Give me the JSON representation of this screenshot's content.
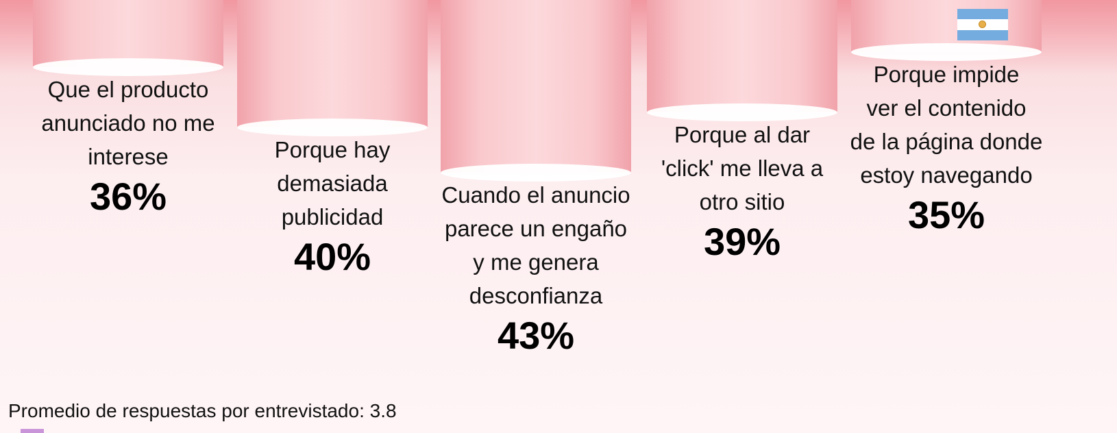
{
  "chart_data": {
    "type": "bar",
    "categories": [
      [
        "Que el producto",
        "anunciado no me",
        "interese"
      ],
      [
        "Porque hay",
        "demasiada",
        "publicidad"
      ],
      [
        "Cuando el anuncio",
        "parece un engaño",
        "y me genera",
        "desconfianza"
      ],
      [
        "Porque al dar",
        "'click' me lleva a",
        "otro sitio"
      ],
      [
        "Porque impide",
        "ver el contenido",
        "de la página donde",
        "estoy navegando"
      ]
    ],
    "values": [
      36,
      40,
      43,
      39,
      35
    ],
    "value_labels": [
      "36%",
      "40%",
      "43%",
      "39%",
      "35%"
    ],
    "unit": "%",
    "ylim": [
      0,
      50
    ],
    "orientation": "hanging from top",
    "grid": false,
    "legend": "none"
  },
  "footnote": "Promedio de respuestas por entrevistado: 3.8",
  "flag_icon": "argentina-flag-icon",
  "colors": {
    "bar": "#f7b7bd",
    "bar_dark": "#ea8e98",
    "bar_top": "#f29aa3"
  }
}
